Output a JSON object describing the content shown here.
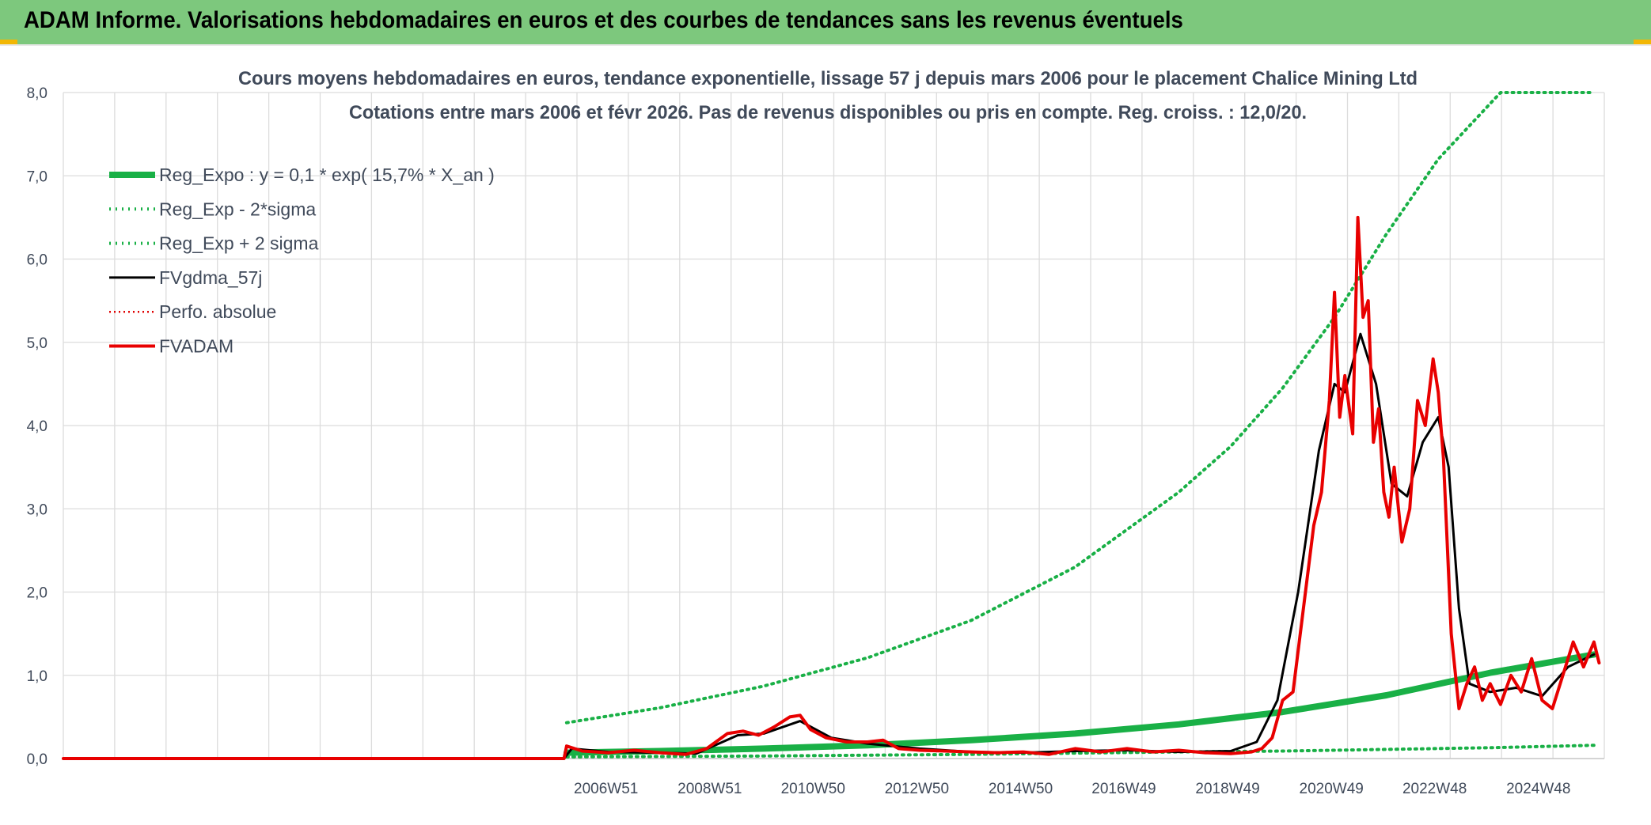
{
  "header": {
    "title": "ADAM Informe. Valorisations hebdomadaires en euros et des courbes de tendances sans les revenus éventuels"
  },
  "colors": {
    "header_bg": "#7dc87d",
    "reg_expo": "#19b046",
    "sigma_bands": "#19b046",
    "fvgdma": "#000000",
    "perfo": "#e00000",
    "fvadam": "#e80000"
  },
  "chart_data": {
    "type": "line",
    "title": "Cours moyens hebdomadaires en euros, tendance exponentielle, lissage 57 j depuis mars 2006 pour le placement Chalice Mining Ltd",
    "subtitle": "Cotations entre mars 2006 et févr 2026. Pas de revenus disponibles ou pris en compte. Reg. croiss. : 12,0/20.",
    "xlabel": "",
    "ylabel": "",
    "ylim": [
      0,
      8
    ],
    "y_ticks": [
      "0,0",
      "1,0",
      "2,0",
      "3,0",
      "4,0",
      "5,0",
      "6,0",
      "7,0",
      "8,0"
    ],
    "x_range": [
      1996.5,
      2026.2
    ],
    "x_ticks": [
      {
        "label": "2006W51",
        "x": 2006.96
      },
      {
        "label": "2008W51",
        "x": 2008.96
      },
      {
        "label": "2010W50",
        "x": 2010.95
      },
      {
        "label": "2012W50",
        "x": 2012.95
      },
      {
        "label": "2014W50",
        "x": 2014.95
      },
      {
        "label": "2016W49",
        "x": 2016.94
      },
      {
        "label": "2018W49",
        "x": 2018.94
      },
      {
        "label": "2020W49",
        "x": 2020.94
      },
      {
        "label": "2022W48",
        "x": 2022.93
      },
      {
        "label": "2024W48",
        "x": 2024.93
      }
    ],
    "grid": true,
    "legend_position": "top-left",
    "series": [
      {
        "name": "Reg_Expo : y = 0,1 * exp( 15,7% *  X_an )",
        "style": "thick",
        "x": [
          2006.2,
          2008,
          2010,
          2012,
          2014,
          2016,
          2018,
          2020,
          2022,
          2024,
          2026
        ],
        "values": [
          0.07,
          0.09,
          0.12,
          0.16,
          0.22,
          0.3,
          0.41,
          0.56,
          0.76,
          1.03,
          1.25
        ]
      },
      {
        "name": "Reg_Exp - 2*sigma",
        "style": "dotted",
        "x": [
          2006.2,
          2010,
          2014,
          2018,
          2020,
          2022,
          2024,
          2026
        ],
        "values": [
          0.02,
          0.03,
          0.05,
          0.08,
          0.09,
          0.11,
          0.13,
          0.16
        ]
      },
      {
        "name": "Reg_Exp + 2 sigma",
        "style": "dotted",
        "x": [
          2006.2,
          2008,
          2010,
          2012,
          2014,
          2016,
          2018,
          2019,
          2020,
          2021,
          2022,
          2023,
          2024.2,
          2025,
          2026
        ],
        "values": [
          0.43,
          0.61,
          0.87,
          1.21,
          1.66,
          2.3,
          3.2,
          3.75,
          4.45,
          5.3,
          6.3,
          7.2,
          8.0,
          8.0,
          8.0
        ]
      },
      {
        "name": "FVgdma_57j",
        "style": "line",
        "x": [
          1996.5,
          2006.15,
          2006.3,
          2007,
          2008,
          2008.7,
          2009.5,
          2010.0,
          2010.7,
          2011.3,
          2012,
          2013,
          2014,
          2015,
          2016,
          2017,
          2018,
          2019,
          2019.5,
          2019.9,
          2020.3,
          2020.7,
          2021.0,
          2021.2,
          2021.5,
          2021.8,
          2022.1,
          2022.4,
          2022.7,
          2023.0,
          2023.2,
          2023.4,
          2023.6,
          2024.0,
          2024.5,
          2025.0,
          2025.5,
          2026.0
        ],
        "values": [
          0,
          0,
          0.12,
          0.08,
          0.07,
          0.06,
          0.28,
          0.3,
          0.45,
          0.25,
          0.18,
          0.12,
          0.08,
          0.07,
          0.09,
          0.1,
          0.08,
          0.09,
          0.2,
          0.7,
          2.0,
          3.7,
          4.5,
          4.4,
          5.1,
          4.5,
          3.3,
          3.15,
          3.8,
          4.1,
          3.5,
          1.8,
          0.9,
          0.8,
          0.85,
          0.75,
          1.1,
          1.25
        ]
      },
      {
        "name": "Perfo. absolue",
        "style": "dotted",
        "x": [],
        "values": []
      },
      {
        "name": "FVADAM",
        "style": "thick",
        "x": [
          1996.5,
          2006.15,
          2006.2,
          2006.5,
          2007,
          2007.5,
          2008,
          2008.5,
          2008.9,
          2009.3,
          2009.6,
          2009.9,
          2010.2,
          2010.5,
          2010.7,
          2010.9,
          2011.2,
          2011.6,
          2012,
          2012.3,
          2012.6,
          2013,
          2013.5,
          2014,
          2014.5,
          2015,
          2015.5,
          2016,
          2016.5,
          2017,
          2017.5,
          2018,
          2018.5,
          2019,
          2019.4,
          2019.6,
          2019.8,
          2020.0,
          2020.2,
          2020.4,
          2020.6,
          2020.75,
          2020.9,
          2021.0,
          2021.1,
          2021.2,
          2021.35,
          2021.45,
          2021.55,
          2021.65,
          2021.75,
          2021.85,
          2021.95,
          2022.05,
          2022.15,
          2022.3,
          2022.45,
          2022.6,
          2022.75,
          2022.9,
          2023.0,
          2023.1,
          2023.25,
          2023.4,
          2023.55,
          2023.7,
          2023.85,
          2024.0,
          2024.2,
          2024.4,
          2024.6,
          2024.8,
          2025.0,
          2025.2,
          2025.4,
          2025.6,
          2025.8,
          2026.0,
          2026.1
        ],
        "values": [
          0,
          0,
          0.15,
          0.09,
          0.07,
          0.1,
          0.07,
          0.05,
          0.12,
          0.3,
          0.33,
          0.28,
          0.38,
          0.5,
          0.52,
          0.35,
          0.25,
          0.2,
          0.2,
          0.22,
          0.12,
          0.1,
          0.09,
          0.08,
          0.07,
          0.08,
          0.05,
          0.12,
          0.08,
          0.12,
          0.08,
          0.1,
          0.07,
          0.06,
          0.08,
          0.12,
          0.25,
          0.7,
          0.8,
          1.8,
          2.8,
          3.2,
          4.3,
          5.6,
          4.1,
          4.6,
          3.9,
          6.5,
          5.3,
          5.5,
          3.8,
          4.2,
          3.2,
          2.9,
          3.5,
          2.6,
          3.0,
          4.3,
          4.0,
          4.8,
          4.4,
          3.6,
          1.5,
          0.6,
          0.9,
          1.1,
          0.7,
          0.9,
          0.65,
          1.0,
          0.8,
          1.2,
          0.7,
          0.6,
          1.0,
          1.4,
          1.1,
          1.4,
          1.15
        ]
      }
    ]
  }
}
